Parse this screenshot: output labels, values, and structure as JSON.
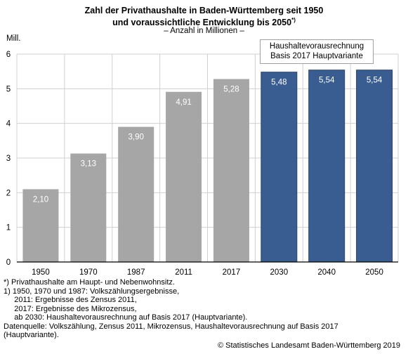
{
  "chart_data": {
    "type": "bar",
    "title_line1": "Zahl der Privathaushalte in Baden-Württemberg seit 1950",
    "title_line2": "und voraussichtliche Entwicklung bis 2050",
    "title_footnote_mark": "*)",
    "subtitle": "– Anzahl in Millionen –",
    "ylabel": "Mill.",
    "ylim": [
      0,
      6
    ],
    "yticks": [
      0,
      1,
      2,
      3,
      4,
      5,
      6
    ],
    "grid": true,
    "categories": [
      "1950",
      "1970",
      "1987",
      "2011",
      "2017",
      "2030",
      "2040",
      "2050"
    ],
    "values": [
      2.1,
      3.13,
      3.9,
      4.91,
      5.28,
      5.48,
      5.54,
      5.54
    ],
    "value_labels": [
      "2,10",
      "3,13",
      "3,90",
      "4,91",
      "5,28",
      "5,48",
      "5,54",
      "5,54"
    ],
    "series_type": [
      "actual",
      "actual",
      "actual",
      "actual",
      "actual",
      "projection",
      "projection",
      "projection"
    ],
    "colors": {
      "actual": "#a6a6a6",
      "projection": "#3a5d91",
      "projection_border": "#2a4570",
      "grid": "#d0d0d0"
    },
    "legend": {
      "line1": "Haushaltevorausrechnung",
      "line2": "Basis 2017 Hauptvariante",
      "placement": "top-right"
    }
  },
  "notes": [
    "*) Privathaushalte am Haupt- und Nebenwohnsitz.",
    "1) 1950, 1970 und 1987: Volkszählungsergebnisse,",
    "     2011: Ergebnisse des Zensus 2011,",
    "     2017: Ergebnisse des Mikrozensus,",
    "     ab 2030: Haushaltevorausrechnung auf Basis 2017 (Hauptvariante).",
    "Datenquelle: Volkszählung, Zensus 2011, Mikrozensus, Haushaltevorausrechnung auf Basis 2017",
    "(Hauptvariante)."
  ],
  "copyright": "© Statistisches Landesamt Baden-Württemberg 2019"
}
